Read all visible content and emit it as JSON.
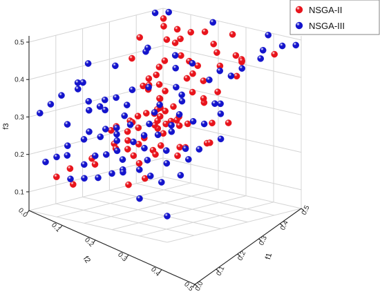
{
  "chart_data": {
    "type": "scatter",
    "axes": {
      "x": {
        "label": "f1",
        "ticks": [
          "0.0",
          "0.1",
          "0.2",
          "0.3",
          "0.4",
          "0.5"
        ],
        "range": [
          0,
          0.5
        ]
      },
      "y": {
        "label": "f2",
        "ticks": [
          "0.0",
          "0.1",
          "0.2",
          "0.3",
          "0.4",
          "0.5"
        ],
        "range": [
          0,
          0.5
        ]
      },
      "z": {
        "label": "f3",
        "ticks": [
          "0.1",
          "0.2",
          "0.3",
          "0.4",
          "0.5"
        ],
        "range": [
          0.05,
          0.5
        ]
      }
    },
    "grid": true,
    "legend_position": "top-right",
    "series": [
      {
        "name": "NSGA-II",
        "color": "#e8141c",
        "points": [
          [
            0.05,
            0.05,
            0.49
          ],
          [
            0.08,
            0.08,
            0.48
          ],
          [
            0.1,
            0.05,
            0.47
          ],
          [
            0.15,
            0.09,
            0.46
          ],
          [
            0.09,
            0.18,
            0.47
          ],
          [
            0.13,
            0.12,
            0.46
          ],
          [
            0.2,
            0.05,
            0.48
          ],
          [
            0.3,
            0.05,
            0.49
          ],
          [
            0.12,
            0.02,
            0.46
          ],
          [
            0.35,
            0.16,
            0.47
          ],
          [
            0.28,
            0.1,
            0.47
          ],
          [
            0.17,
            0.13,
            0.46
          ],
          [
            0.12,
            0.24,
            0.43
          ],
          [
            0.2,
            0.2,
            0.43
          ],
          [
            0.25,
            0.16,
            0.43
          ],
          [
            0.35,
            0.25,
            0.43
          ],
          [
            0.3,
            0.18,
            0.43
          ],
          [
            0.4,
            0.2,
            0.45
          ],
          [
            0.18,
            0.2,
            0.41
          ],
          [
            0.22,
            0.28,
            0.4
          ],
          [
            0.24,
            0.3,
            0.39
          ],
          [
            0.2,
            0.22,
            0.37
          ],
          [
            0.28,
            0.3,
            0.36
          ],
          [
            0.32,
            0.34,
            0.35
          ],
          [
            0.18,
            0.26,
            0.37
          ],
          [
            0.26,
            0.26,
            0.37
          ],
          [
            0.16,
            0.22,
            0.35
          ],
          [
            0.22,
            0.24,
            0.34
          ],
          [
            0.27,
            0.3,
            0.33
          ],
          [
            0.25,
            0.32,
            0.32
          ],
          [
            0.3,
            0.33,
            0.31
          ],
          [
            0.33,
            0.36,
            0.3
          ],
          [
            0.35,
            0.3,
            0.3
          ],
          [
            0.28,
            0.25,
            0.33
          ],
          [
            0.24,
            0.28,
            0.31
          ],
          [
            0.3,
            0.34,
            0.3
          ],
          [
            0.26,
            0.36,
            0.29
          ],
          [
            0.32,
            0.4,
            0.28
          ],
          [
            0.2,
            0.3,
            0.3
          ],
          [
            0.24,
            0.38,
            0.28
          ],
          [
            0.35,
            0.36,
            0.29
          ],
          [
            0.3,
            0.28,
            0.3
          ],
          [
            0.22,
            0.35,
            0.3
          ],
          [
            0.38,
            0.3,
            0.31
          ],
          [
            0.42,
            0.25,
            0.31
          ],
          [
            0.45,
            0.22,
            0.31
          ],
          [
            0.38,
            0.4,
            0.27
          ],
          [
            0.28,
            0.42,
            0.27
          ],
          [
            0.2,
            0.4,
            0.28
          ],
          [
            0.18,
            0.36,
            0.28
          ],
          [
            0.25,
            0.44,
            0.26
          ],
          [
            0.4,
            0.35,
            0.26
          ],
          [
            0.45,
            0.3,
            0.27
          ],
          [
            0.32,
            0.44,
            0.24
          ],
          [
            0.36,
            0.46,
            0.23
          ],
          [
            0.3,
            0.4,
            0.26
          ],
          [
            0.26,
            0.4,
            0.24
          ],
          [
            0.2,
            0.46,
            0.2
          ],
          [
            0.15,
            0.42,
            0.2
          ],
          [
            0.12,
            0.3,
            0.2
          ],
          [
            0.1,
            0.45,
            0.17
          ],
          [
            0.08,
            0.48,
            0.15
          ],
          [
            0.14,
            0.48,
            0.14
          ],
          [
            0.3,
            0.32,
            0.32
          ],
          [
            0.34,
            0.34,
            0.31
          ],
          [
            0.36,
            0.32,
            0.32
          ],
          [
            0.31,
            0.26,
            0.31
          ],
          [
            0.27,
            0.27,
            0.32
          ],
          [
            0.18,
            0.3,
            0.28
          ],
          [
            0.4,
            0.45,
            0.27
          ],
          [
            0.46,
            0.42,
            0.26
          ],
          [
            0.48,
            0.32,
            0.28
          ],
          [
            0.44,
            0.37,
            0.27
          ],
          [
            0.38,
            0.42,
            0.25
          ],
          [
            0.4,
            0.48,
            0.2
          ],
          [
            0.36,
            0.5,
            0.18
          ],
          [
            0.22,
            0.16,
            0.44
          ],
          [
            0.38,
            0.12,
            0.46
          ],
          [
            0.42,
            0.14,
            0.46
          ],
          [
            0.44,
            0.16,
            0.46
          ],
          [
            0.46,
            0.18,
            0.47
          ],
          [
            0.5,
            0.1,
            0.48
          ],
          [
            0.48,
            0.22,
            0.44
          ],
          [
            0.45,
            0.26,
            0.4
          ],
          [
            0.42,
            0.28,
            0.37
          ],
          [
            0.36,
            0.22,
            0.36
          ],
          [
            0.32,
            0.22,
            0.37
          ],
          [
            0.34,
            0.2,
            0.4
          ],
          [
            0.29,
            0.21,
            0.4
          ],
          [
            0.15,
            0.18,
            0.38
          ]
        ]
      },
      {
        "name": "NSGA-III",
        "color": "#1414cc",
        "points": [
          [
            0.02,
            0.05,
            0.5
          ],
          [
            0.04,
            0.02,
            0.5
          ],
          [
            0.2,
            0.02,
            0.5
          ],
          [
            0.4,
            0.02,
            0.5
          ],
          [
            0.48,
            0.05,
            0.49
          ],
          [
            0.5,
            0.02,
            0.49
          ],
          [
            0.45,
            0.1,
            0.46
          ],
          [
            0.42,
            0.06,
            0.47
          ],
          [
            0.46,
            0.18,
            0.45
          ],
          [
            0.44,
            0.2,
            0.43
          ],
          [
            0.4,
            0.24,
            0.42
          ],
          [
            0.38,
            0.18,
            0.43
          ],
          [
            0.3,
            0.2,
            0.44
          ],
          [
            0.18,
            0.25,
            0.46
          ],
          [
            0.1,
            0.16,
            0.44
          ],
          [
            0.02,
            0.3,
            0.41
          ],
          [
            0.06,
            0.38,
            0.38
          ],
          [
            0.08,
            0.4,
            0.37
          ],
          [
            0.04,
            0.42,
            0.35
          ],
          [
            0.03,
            0.45,
            0.33
          ],
          [
            0.02,
            0.48,
            0.31
          ],
          [
            0.1,
            0.46,
            0.29
          ],
          [
            0.12,
            0.4,
            0.32
          ],
          [
            0.14,
            0.38,
            0.33
          ],
          [
            0.16,
            0.34,
            0.35
          ],
          [
            0.18,
            0.32,
            0.33
          ],
          [
            0.2,
            0.35,
            0.31
          ],
          [
            0.22,
            0.4,
            0.29
          ],
          [
            0.24,
            0.42,
            0.28
          ],
          [
            0.26,
            0.44,
            0.27
          ],
          [
            0.28,
            0.46,
            0.25
          ],
          [
            0.3,
            0.46,
            0.23
          ],
          [
            0.32,
            0.48,
            0.21
          ],
          [
            0.4,
            0.4,
            0.26
          ],
          [
            0.45,
            0.38,
            0.27
          ],
          [
            0.48,
            0.4,
            0.25
          ],
          [
            0.5,
            0.3,
            0.29
          ],
          [
            0.48,
            0.36,
            0.27
          ],
          [
            0.5,
            0.45,
            0.22
          ],
          [
            0.46,
            0.48,
            0.2
          ],
          [
            0.42,
            0.48,
            0.21
          ],
          [
            0.38,
            0.45,
            0.24
          ],
          [
            0.34,
            0.42,
            0.26
          ],
          [
            0.3,
            0.38,
            0.28
          ],
          [
            0.28,
            0.34,
            0.3
          ],
          [
            0.26,
            0.3,
            0.32
          ],
          [
            0.24,
            0.26,
            0.33
          ],
          [
            0.36,
            0.34,
            0.31
          ],
          [
            0.38,
            0.36,
            0.3
          ],
          [
            0.4,
            0.3,
            0.32
          ],
          [
            0.44,
            0.3,
            0.32
          ],
          [
            0.35,
            0.38,
            0.29
          ],
          [
            0.2,
            0.44,
            0.27
          ],
          [
            0.16,
            0.46,
            0.26
          ],
          [
            0.12,
            0.48,
            0.24
          ],
          [
            0.1,
            0.5,
            0.21
          ],
          [
            0.06,
            0.5,
            0.19
          ],
          [
            0.08,
            0.44,
            0.2
          ],
          [
            0.15,
            0.5,
            0.16
          ],
          [
            0.2,
            0.5,
            0.17
          ],
          [
            0.18,
            0.48,
            0.2
          ],
          [
            0.25,
            0.5,
            0.18
          ],
          [
            0.3,
            0.5,
            0.2
          ],
          [
            0.34,
            0.5,
            0.21
          ],
          [
            0.22,
            0.48,
            0.23
          ],
          [
            0.26,
            0.48,
            0.24
          ],
          [
            0.14,
            0.42,
            0.27
          ],
          [
            0.18,
            0.4,
            0.28
          ],
          [
            0.12,
            0.34,
            0.31
          ],
          [
            0.1,
            0.32,
            0.33
          ],
          [
            0.08,
            0.36,
            0.33
          ],
          [
            0.16,
            0.28,
            0.36
          ],
          [
            0.2,
            0.26,
            0.37
          ],
          [
            0.28,
            0.24,
            0.38
          ],
          [
            0.32,
            0.26,
            0.37
          ],
          [
            0.34,
            0.28,
            0.36
          ],
          [
            0.42,
            0.24,
            0.36
          ],
          [
            0.46,
            0.26,
            0.37
          ],
          [
            0.48,
            0.28,
            0.35
          ],
          [
            0.22,
            0.18,
            0.41
          ],
          [
            0.18,
            0.14,
            0.43
          ],
          [
            0.06,
            0.24,
            0.4
          ],
          [
            0.04,
            0.34,
            0.37
          ],
          [
            0.4,
            0.5,
            0.15
          ],
          [
            0.5,
            0.5,
            0.12
          ],
          [
            0.35,
            0.3,
            0.33
          ],
          [
            0.25,
            0.38,
            0.3
          ],
          [
            0.3,
            0.42,
            0.27
          ],
          [
            0.38,
            0.48,
            0.22
          ],
          [
            0.44,
            0.44,
            0.24
          ]
        ]
      }
    ]
  }
}
